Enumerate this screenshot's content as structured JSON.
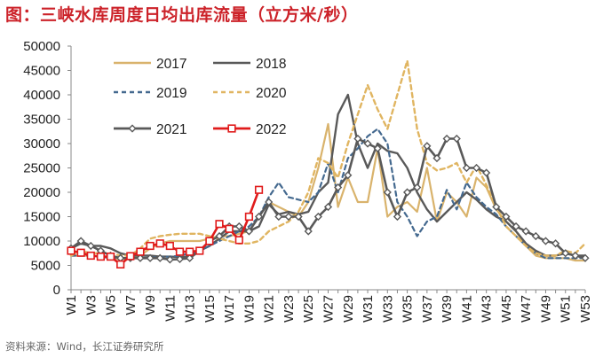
{
  "title": "图：三峡水库周度日均出库流量（立方米/秒）",
  "source": "资料来源：Wind，长江证券研究所",
  "chart_data": {
    "type": "line",
    "ylim": [
      0,
      50000
    ],
    "yticks": [
      0,
      5000,
      10000,
      15000,
      20000,
      25000,
      30000,
      35000,
      40000,
      45000,
      50000
    ],
    "ytick_labels": [
      "0",
      "5000",
      "10000",
      "15000",
      "20000",
      "25000",
      "30000",
      "35000",
      "40000",
      "45000",
      "50000"
    ],
    "x_tick_labels": [
      "W1",
      "W3",
      "W5",
      "W7",
      "W9",
      "W11",
      "W13",
      "W15",
      "W17",
      "W19",
      "W21",
      "W23",
      "W25",
      "W27",
      "W29",
      "W31",
      "W33",
      "W35",
      "W37",
      "W39",
      "W41",
      "W43",
      "W45",
      "W47",
      "W49",
      "W51",
      "W53"
    ],
    "x_tick_weeks": [
      1,
      3,
      5,
      7,
      9,
      11,
      13,
      15,
      17,
      19,
      21,
      23,
      25,
      27,
      29,
      31,
      33,
      35,
      37,
      39,
      41,
      43,
      45,
      47,
      49,
      51,
      53
    ],
    "grid": false,
    "legend_position": "top-left",
    "series": [
      {
        "name": "2017",
        "color": "#d9b36c",
        "dash": "solid",
        "width": 2.2,
        "marker": "none",
        "weeks": [
          1,
          2,
          3,
          4,
          5,
          6,
          7,
          8,
          9,
          10,
          11,
          12,
          13,
          14,
          15,
          16,
          17,
          18,
          19,
          20,
          21,
          22,
          23,
          24,
          25,
          26,
          27,
          28,
          29,
          30,
          31,
          32,
          33,
          34,
          35,
          36,
          37,
          38,
          39,
          40,
          41,
          42,
          43,
          44,
          45,
          46,
          47,
          48,
          49,
          50,
          51,
          52,
          53
        ],
        "values": [
          7000,
          7000,
          7000,
          6800,
          6500,
          6300,
          6500,
          7000,
          8500,
          9500,
          10000,
          10000,
          10000,
          10000,
          10500,
          11000,
          11000,
          11500,
          12000,
          15000,
          18000,
          17000,
          16000,
          15000,
          18000,
          25000,
          34000,
          17000,
          23000,
          18000,
          18000,
          29000,
          15000,
          17000,
          18000,
          16000,
          25000,
          14000,
          20000,
          18000,
          15000,
          23000,
          21000,
          16500,
          14000,
          12000,
          9000,
          7000,
          6500,
          6500,
          6500,
          6000,
          6000
        ]
      },
      {
        "name": "2018",
        "color": "#595959",
        "dash": "solid",
        "width": 2.4,
        "marker": "none",
        "weeks": [
          1,
          2,
          3,
          4,
          5,
          6,
          7,
          8,
          9,
          10,
          11,
          12,
          13,
          14,
          15,
          16,
          17,
          18,
          19,
          20,
          21,
          22,
          23,
          24,
          25,
          26,
          27,
          28,
          29,
          30,
          31,
          32,
          33,
          34,
          35,
          36,
          37,
          38,
          39,
          40,
          41,
          42,
          43,
          44,
          45,
          46,
          47,
          48,
          49,
          50,
          51,
          52,
          53
        ],
        "values": [
          8500,
          9500,
          9000,
          9000,
          8500,
          7500,
          7000,
          7000,
          7000,
          6800,
          6800,
          6700,
          6800,
          8000,
          9000,
          10500,
          12000,
          12000,
          12000,
          13000,
          17500,
          15500,
          16000,
          15500,
          16000,
          20000,
          22000,
          36000,
          40000,
          30000,
          25000,
          30000,
          28500,
          28000,
          25000,
          20000,
          16500,
          14000,
          16000,
          18000,
          20000,
          18500,
          16500,
          15000,
          14000,
          12000,
          9500,
          8000,
          7000,
          7000,
          7500,
          7000,
          7000
        ]
      },
      {
        "name": "2019",
        "color": "#44698f",
        "dash": "5,4",
        "width": 2.2,
        "marker": "none",
        "weeks": [
          1,
          2,
          3,
          4,
          5,
          6,
          7,
          8,
          9,
          10,
          11,
          12,
          13,
          14,
          15,
          16,
          17,
          18,
          19,
          20,
          21,
          22,
          23,
          24,
          25,
          26,
          27,
          28,
          29,
          30,
          31,
          32,
          33,
          34,
          35,
          36,
          37,
          38,
          39,
          40,
          41,
          42,
          43,
          44,
          45,
          46,
          47,
          48,
          49,
          50,
          51,
          52,
          53
        ],
        "values": [
          7000,
          7000,
          7000,
          6800,
          6500,
          6500,
          6500,
          6500,
          6600,
          6700,
          6800,
          7000,
          7500,
          8000,
          9000,
          10000,
          11000,
          12000,
          13000,
          15000,
          19000,
          22000,
          19000,
          18500,
          18000,
          20000,
          26000,
          20000,
          27000,
          29000,
          31500,
          33000,
          30000,
          18000,
          15000,
          11000,
          14000,
          15000,
          20500,
          16500,
          22000,
          19000,
          17000,
          15500,
          13000,
          11000,
          9000,
          7500,
          6500,
          6500,
          6500,
          6500,
          6500
        ]
      },
      {
        "name": "2020",
        "color": "#e0b561",
        "dash": "5,4",
        "width": 2.4,
        "marker": "none",
        "weeks": [
          1,
          2,
          3,
          4,
          5,
          6,
          7,
          8,
          9,
          10,
          11,
          12,
          13,
          14,
          15,
          16,
          17,
          18,
          19,
          20,
          21,
          22,
          23,
          24,
          25,
          26,
          27,
          28,
          29,
          30,
          31,
          32,
          33,
          34,
          35,
          36,
          37,
          38,
          39,
          40,
          41,
          42,
          43,
          44,
          45,
          46,
          47,
          48,
          49,
          50,
          51,
          52,
          53
        ],
        "values": [
          7000,
          8000,
          7500,
          7500,
          7500,
          7000,
          7000,
          8500,
          10500,
          11000,
          11300,
          11500,
          11500,
          11500,
          11000,
          10500,
          10000,
          9500,
          9500,
          10000,
          12000,
          13000,
          14000,
          16000,
          20000,
          27000,
          26000,
          23000,
          30000,
          36000,
          42000,
          37000,
          33000,
          40000,
          47000,
          33000,
          26000,
          24500,
          25000,
          26000,
          22000,
          25500,
          21500,
          17000,
          13000,
          11000,
          9000,
          7500,
          7000,
          7000,
          8000,
          7500,
          9500
        ]
      },
      {
        "name": "2021",
        "color": "#595959",
        "dash": "solid",
        "width": 2.6,
        "marker": "diamond",
        "weeks": [
          1,
          2,
          3,
          4,
          5,
          6,
          7,
          8,
          9,
          10,
          11,
          12,
          13,
          14,
          15,
          16,
          17,
          18,
          19,
          20,
          21,
          22,
          23,
          24,
          25,
          26,
          27,
          28,
          29,
          30,
          31,
          32,
          33,
          34,
          35,
          36,
          37,
          38,
          39,
          40,
          41,
          42,
          43,
          44,
          45,
          46,
          47,
          48,
          49,
          50,
          51,
          52,
          53
        ],
        "values": [
          8500,
          10000,
          9000,
          8000,
          7000,
          6500,
          6500,
          6500,
          6500,
          6500,
          6200,
          6300,
          6500,
          8000,
          10000,
          11000,
          13000,
          13000,
          12000,
          15000,
          18000,
          15000,
          15000,
          15000,
          12000,
          15000,
          17000,
          21000,
          23500,
          31000,
          30000,
          29000,
          20000,
          15000,
          20000,
          21000,
          29500,
          27000,
          31000,
          31000,
          25000,
          25000,
          24000,
          17000,
          15000,
          13000,
          12000,
          11000,
          10000,
          9500,
          7500,
          7000,
          6500
        ]
      },
      {
        "name": "2022",
        "color": "#e01b1b",
        "dash": "solid",
        "width": 2.6,
        "marker": "square",
        "weeks": [
          1,
          2,
          3,
          4,
          5,
          6,
          7,
          8,
          9,
          10,
          11,
          12,
          13,
          14,
          15,
          16,
          17,
          18,
          19,
          20
        ],
        "values": [
          8000,
          7600,
          7000,
          6800,
          6800,
          5200,
          6900,
          7800,
          9000,
          9500,
          9000,
          7800,
          7800,
          8000,
          10000,
          13500,
          12500,
          10200,
          15000,
          20500
        ]
      }
    ]
  }
}
